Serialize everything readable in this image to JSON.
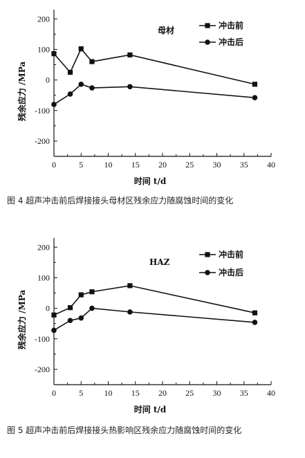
{
  "chart_data": [
    {
      "type": "line",
      "annotation": "母材",
      "xlabel": "时间 t/d",
      "ylabel": "残余应力 /MPa",
      "xlim": [
        0,
        40
      ],
      "ylim": [
        -250,
        230
      ],
      "xticks": [
        0,
        5,
        10,
        15,
        20,
        25,
        30,
        35,
        40
      ],
      "yticks": [
        200,
        100,
        0,
        -100,
        -200
      ],
      "legend_position": "top-right",
      "grid": false,
      "series": [
        {
          "name": "冲击前",
          "marker": "square",
          "x": [
            0,
            3,
            5,
            7,
            14,
            37
          ],
          "y": [
            86,
            25,
            102,
            60,
            82,
            -14
          ]
        },
        {
          "name": "冲击后",
          "marker": "circle",
          "x": [
            0,
            3,
            5,
            7,
            14,
            37
          ],
          "y": [
            -80,
            -46,
            -14,
            -26,
            -22,
            -58
          ]
        }
      ]
    },
    {
      "type": "line",
      "annotation": "HAZ",
      "xlabel": "时间 t/d",
      "ylabel": "残余应力 /MPa",
      "xlim": [
        0,
        40
      ],
      "ylim": [
        -250,
        230
      ],
      "xticks": [
        0,
        5,
        10,
        15,
        20,
        25,
        30,
        35,
        40
      ],
      "yticks": [
        200,
        100,
        0,
        -100,
        -200
      ],
      "legend_position": "top-right",
      "grid": false,
      "series": [
        {
          "name": "冲击前",
          "marker": "square",
          "x": [
            0,
            3,
            5,
            7,
            14,
            37
          ],
          "y": [
            -22,
            2,
            44,
            54,
            74,
            -15
          ]
        },
        {
          "name": "冲击后",
          "marker": "circle",
          "x": [
            0,
            3,
            5,
            7,
            14,
            37
          ],
          "y": [
            -72,
            -40,
            -32,
            0,
            -12,
            -46
          ]
        }
      ]
    }
  ],
  "captions": [
    "图 4 超声冲击前后焊接接头母材区残余应力随腐蚀时间的变化",
    "图 5 超声冲击前后焊接接头热影响区残余应力随腐蚀时间的变化"
  ]
}
